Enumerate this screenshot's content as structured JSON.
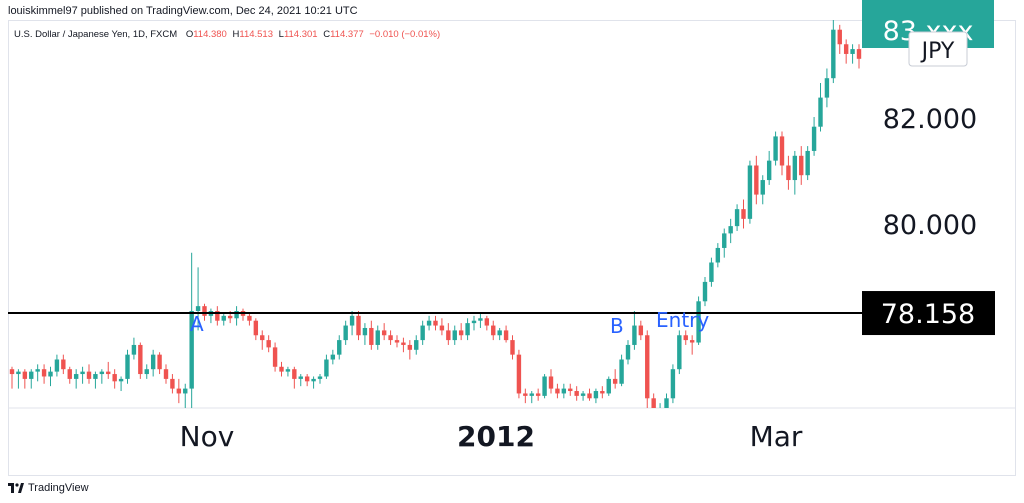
{
  "header": {
    "published": "louiskimmel97 published on TradingView.com, Dec 24, 2021 10:21 UTC"
  },
  "legend": {
    "symbol": "U.S. Dollar / Japanese Yen, 1D, FXCM",
    "o_label": "O",
    "o": "114.380",
    "h_label": "H",
    "h": "114.513",
    "l_label": "L",
    "l": "114.301",
    "c_label": "C",
    "c": "114.377",
    "change": "−0.010 (−0.01%)"
  },
  "footer": {
    "brand": "TradingView"
  },
  "colors": {
    "up": "#26a69a",
    "down": "#ef5350",
    "annotation": "#2962ff",
    "price_box": "#000000",
    "price_label_bg": "#26a69a"
  },
  "chart_data": {
    "type": "candlestick",
    "currency_label": "JPY",
    "y_ticks": [
      "82.000",
      "80.000"
    ],
    "x_ticks": [
      {
        "label": "Nov",
        "bold": false
      },
      {
        "label": "2012",
        "bold": true
      },
      {
        "label": "Mar",
        "bold": false
      }
    ],
    "horizontal_line": {
      "value": 78.158,
      "label": "78.158"
    },
    "last_price_label": "83.xxx",
    "annotations": [
      "A",
      "B",
      "Entry"
    ],
    "ylim": [
      76.2,
      84.2
    ],
    "candles": [
      [
        77.0,
        77.05,
        76.6,
        76.9
      ],
      [
        76.9,
        77.0,
        76.6,
        76.95
      ],
      [
        76.95,
        77.0,
        76.6,
        76.8
      ],
      [
        76.8,
        77.0,
        76.6,
        76.95
      ],
      [
        76.95,
        77.1,
        76.75,
        77.0
      ],
      [
        77.0,
        77.1,
        76.7,
        76.85
      ],
      [
        76.85,
        77.05,
        76.65,
        76.95
      ],
      [
        76.95,
        77.3,
        76.85,
        77.2
      ],
      [
        77.2,
        77.3,
        76.9,
        77.0
      ],
      [
        77.0,
        77.05,
        76.7,
        76.8
      ],
      [
        76.8,
        77.0,
        76.6,
        76.9
      ],
      [
        76.9,
        77.05,
        76.7,
        76.95
      ],
      [
        76.95,
        77.1,
        76.7,
        76.8
      ],
      [
        76.8,
        76.95,
        76.6,
        76.9
      ],
      [
        76.9,
        77.0,
        76.7,
        76.95
      ],
      [
        76.95,
        77.15,
        76.8,
        76.9
      ],
      [
        76.9,
        77.0,
        76.6,
        76.75
      ],
      [
        76.75,
        76.85,
        76.55,
        76.8
      ],
      [
        76.8,
        77.4,
        76.7,
        77.3
      ],
      [
        77.3,
        77.65,
        77.2,
        77.5
      ],
      [
        77.5,
        77.55,
        76.8,
        76.9
      ],
      [
        76.9,
        77.1,
        76.8,
        77.0
      ],
      [
        77.0,
        77.4,
        76.85,
        77.3
      ],
      [
        77.3,
        77.35,
        76.9,
        77.0
      ],
      [
        77.0,
        77.1,
        76.7,
        76.8
      ],
      [
        76.8,
        76.9,
        76.5,
        76.6
      ],
      [
        76.6,
        76.8,
        76.3,
        76.5
      ],
      [
        76.5,
        76.7,
        76.2,
        76.6
      ],
      [
        76.6,
        79.4,
        76.2,
        78.2
      ],
      [
        78.2,
        79.1,
        77.8,
        78.3
      ],
      [
        78.3,
        78.35,
        78.0,
        78.1
      ],
      [
        78.1,
        78.25,
        77.95,
        78.2
      ],
      [
        78.2,
        78.3,
        77.9,
        78.0
      ],
      [
        78.0,
        78.15,
        77.9,
        78.1
      ],
      [
        78.1,
        78.2,
        77.95,
        78.05
      ],
      [
        78.05,
        78.3,
        77.9,
        78.2
      ],
      [
        78.2,
        78.25,
        78.0,
        78.1
      ],
      [
        78.1,
        78.15,
        77.9,
        78.0
      ],
      [
        78.0,
        78.05,
        77.6,
        77.7
      ],
      [
        77.7,
        77.8,
        77.4,
        77.6
      ],
      [
        77.6,
        77.7,
        77.35,
        77.45
      ],
      [
        77.45,
        77.55,
        76.95,
        77.05
      ],
      [
        77.05,
        77.15,
        76.85,
        76.95
      ],
      [
        76.95,
        77.05,
        76.85,
        77.0
      ],
      [
        77.0,
        77.05,
        76.6,
        76.8
      ],
      [
        76.8,
        76.9,
        76.65,
        76.85
      ],
      [
        76.85,
        76.9,
        76.65,
        76.75
      ],
      [
        76.75,
        76.85,
        76.6,
        76.8
      ],
      [
        76.8,
        76.9,
        76.7,
        76.85
      ],
      [
        76.85,
        77.3,
        76.8,
        77.2
      ],
      [
        77.2,
        77.4,
        77.1,
        77.3
      ],
      [
        77.3,
        77.7,
        77.2,
        77.6
      ],
      [
        77.6,
        78.0,
        77.5,
        77.9
      ],
      [
        77.9,
        78.2,
        77.7,
        78.1
      ],
      [
        78.1,
        78.2,
        77.6,
        77.7
      ],
      [
        77.7,
        77.95,
        77.5,
        77.85
      ],
      [
        77.85,
        78.0,
        77.4,
        77.5
      ],
      [
        77.5,
        77.9,
        77.4,
        77.8
      ],
      [
        77.8,
        77.95,
        77.6,
        77.7
      ],
      [
        77.7,
        77.8,
        77.5,
        77.6
      ],
      [
        77.6,
        77.7,
        77.45,
        77.55
      ],
      [
        77.55,
        77.65,
        77.35,
        77.5
      ],
      [
        77.5,
        77.6,
        77.2,
        77.4
      ],
      [
        77.4,
        77.7,
        77.3,
        77.6
      ],
      [
        77.6,
        78.0,
        77.5,
        77.9
      ],
      [
        77.9,
        78.1,
        77.8,
        78.0
      ],
      [
        78.0,
        78.1,
        77.8,
        77.9
      ],
      [
        77.9,
        78.05,
        77.7,
        77.8
      ],
      [
        77.8,
        77.95,
        77.5,
        77.6
      ],
      [
        77.6,
        77.9,
        77.5,
        77.8
      ],
      [
        77.8,
        77.95,
        77.6,
        77.7
      ],
      [
        77.7,
        78.05,
        77.6,
        77.95
      ],
      [
        77.95,
        78.1,
        77.8,
        78.0
      ],
      [
        78.0,
        78.15,
        77.85,
        78.05
      ],
      [
        78.05,
        78.1,
        77.8,
        77.9
      ],
      [
        77.9,
        78.0,
        77.6,
        77.7
      ],
      [
        77.7,
        77.85,
        77.6,
        77.8
      ],
      [
        77.8,
        77.9,
        77.55,
        77.6
      ],
      [
        77.6,
        77.7,
        77.2,
        77.3
      ],
      [
        77.3,
        77.4,
        76.4,
        76.5
      ],
      [
        76.5,
        76.6,
        76.3,
        76.45
      ],
      [
        76.45,
        76.55,
        76.3,
        76.5
      ],
      [
        76.5,
        76.6,
        76.35,
        76.45
      ],
      [
        76.45,
        76.9,
        76.4,
        76.85
      ],
      [
        76.85,
        77.0,
        76.5,
        76.6
      ],
      [
        76.6,
        76.7,
        76.4,
        76.5
      ],
      [
        76.5,
        76.7,
        76.4,
        76.6
      ],
      [
        76.6,
        76.7,
        76.45,
        76.55
      ],
      [
        76.55,
        76.65,
        76.35,
        76.45
      ],
      [
        76.45,
        76.55,
        76.35,
        76.5
      ],
      [
        76.5,
        76.6,
        76.35,
        76.4
      ],
      [
        76.4,
        76.6,
        76.3,
        76.55
      ],
      [
        76.55,
        76.65,
        76.4,
        76.5
      ],
      [
        76.5,
        76.85,
        76.45,
        76.8
      ],
      [
        76.8,
        77.0,
        76.6,
        76.7
      ],
      [
        76.7,
        77.3,
        76.65,
        77.2
      ],
      [
        77.2,
        77.6,
        77.1,
        77.5
      ],
      [
        77.5,
        78.2,
        77.4,
        77.9
      ],
      [
        77.9,
        78.0,
        77.6,
        77.7
      ],
      [
        77.7,
        77.8,
        76.2,
        76.4
      ],
      [
        76.4,
        76.5,
        76.0,
        76.1
      ],
      [
        76.1,
        76.3,
        75.9,
        76.2
      ],
      [
        76.2,
        76.5,
        76.1,
        76.4
      ],
      [
        76.4,
        77.1,
        76.3,
        77.0
      ],
      [
        77.0,
        77.8,
        76.9,
        77.7
      ],
      [
        77.7,
        77.8,
        77.5,
        77.6
      ],
      [
        77.6,
        77.7,
        77.3,
        77.55
      ],
      [
        77.55,
        78.5,
        77.5,
        78.4
      ],
      [
        78.4,
        78.9,
        78.3,
        78.8
      ],
      [
        78.8,
        79.3,
        78.7,
        79.2
      ],
      [
        79.2,
        79.6,
        79.1,
        79.5
      ],
      [
        79.5,
        79.9,
        79.3,
        79.8
      ],
      [
        79.8,
        80.1,
        79.6,
        79.95
      ],
      [
        79.95,
        80.4,
        79.85,
        80.3
      ],
      [
        80.3,
        80.5,
        79.9,
        80.1
      ],
      [
        80.1,
        81.3,
        80.0,
        81.2
      ],
      [
        81.2,
        81.4,
        80.4,
        80.6
      ],
      [
        80.6,
        81.0,
        80.4,
        80.9
      ],
      [
        80.9,
        81.5,
        80.8,
        81.3
      ],
      [
        81.3,
        81.9,
        81.2,
        81.8
      ],
      [
        81.8,
        81.9,
        81.0,
        81.2
      ],
      [
        81.2,
        81.4,
        80.7,
        80.9
      ],
      [
        80.9,
        81.5,
        80.6,
        81.4
      ],
      [
        81.4,
        81.6,
        80.8,
        81.0
      ],
      [
        81.0,
        81.6,
        80.9,
        81.5
      ],
      [
        81.5,
        82.2,
        81.4,
        82.0
      ],
      [
        82.0,
        82.9,
        81.9,
        82.6
      ],
      [
        82.6,
        83.2,
        82.4,
        83.0
      ],
      [
        83.0,
        84.2,
        82.9,
        84.0
      ],
      [
        84.0,
        84.1,
        83.5,
        83.7
      ],
      [
        83.7,
        83.8,
        83.3,
        83.5
      ],
      [
        83.5,
        83.7,
        83.3,
        83.6
      ],
      [
        83.6,
        83.7,
        83.2,
        83.4
      ]
    ]
  }
}
